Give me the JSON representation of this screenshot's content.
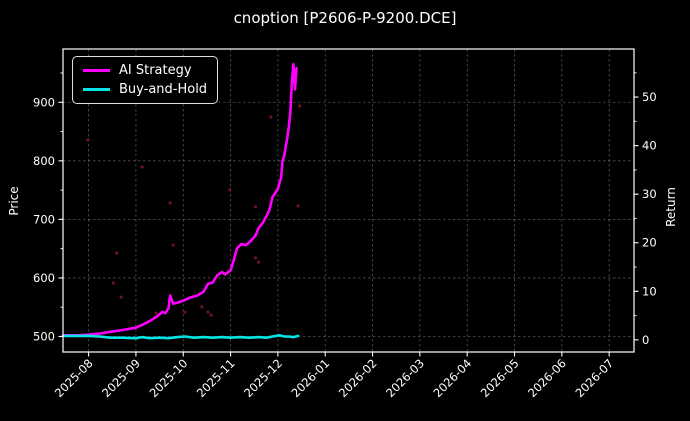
{
  "figure": {
    "title": "cnoption [P2606-P-9200.DCE]",
    "background": "#000000",
    "text_color": "#ffffff",
    "grid_color": "#ffffff",
    "spine_color": "#ffffff"
  },
  "legend": {
    "items": [
      {
        "label": "AI Strategy",
        "color": "#ff00ff"
      },
      {
        "label": "Buy-and-Hold",
        "color": "#00e5e5"
      }
    ]
  },
  "axes": {
    "left": {
      "label": "Price",
      "ticks": [
        500,
        600,
        700,
        800,
        900
      ],
      "minor_ticks": [
        550,
        650,
        750,
        850,
        950
      ],
      "range": [
        473.5,
        991
      ]
    },
    "right": {
      "label": "Return",
      "ticks": [
        0,
        10,
        20,
        30,
        40,
        50
      ],
      "minor_ticks": [
        5,
        15,
        25,
        35,
        45,
        55
      ],
      "range": [
        -2.5,
        59.9
      ]
    },
    "x": {
      "ticks": [
        "2025-08",
        "2025-09",
        "2025-10",
        "2025-11",
        "2025-12",
        "2026-01",
        "2026-02",
        "2026-03",
        "2026-04",
        "2026-05",
        "2026-06",
        "2026-07"
      ],
      "range": [
        "2025-07-15",
        "2026-07-17"
      ]
    }
  },
  "chart_data": {
    "type": "line",
    "title": "cnoption [P2606-P-9200.DCE]",
    "xlabel": "",
    "ylabel_left": "Price",
    "ylabel_right": "Return",
    "grid": true,
    "legend_position": "upper left",
    "x_range": [
      "2025-07-15",
      "2026-07-17"
    ],
    "left_range": [
      473.5,
      991
    ],
    "right_range": [
      -2.5,
      59.9
    ],
    "series": [
      {
        "name": "AI Strategy",
        "color": "#ff00ff",
        "axis": "left",
        "points": [
          [
            "2025-07-15",
            502
          ],
          [
            "2025-07-24",
            502
          ],
          [
            "2025-08-01",
            503
          ],
          [
            "2025-08-08",
            505
          ],
          [
            "2025-08-15",
            508
          ],
          [
            "2025-08-23",
            511
          ],
          [
            "2025-09-01",
            515
          ],
          [
            "2025-09-06",
            521
          ],
          [
            "2025-09-11",
            528
          ],
          [
            "2025-09-15",
            535
          ],
          [
            "2025-09-18",
            542
          ],
          [
            "2025-09-20",
            540
          ],
          [
            "2025-09-22",
            548
          ],
          [
            "2025-09-23",
            570
          ],
          [
            "2025-09-25",
            556
          ],
          [
            "2025-09-28",
            558
          ],
          [
            "2025-10-01",
            561
          ],
          [
            "2025-10-05",
            566
          ],
          [
            "2025-10-10",
            570
          ],
          [
            "2025-10-14",
            576
          ],
          [
            "2025-10-17",
            590
          ],
          [
            "2025-10-20",
            592
          ],
          [
            "2025-10-23",
            605
          ],
          [
            "2025-10-26",
            610
          ],
          [
            "2025-10-28",
            606
          ],
          [
            "2025-11-01",
            613
          ],
          [
            "2025-11-03",
            630
          ],
          [
            "2025-11-05",
            650
          ],
          [
            "2025-11-08",
            658
          ],
          [
            "2025-11-11",
            656
          ],
          [
            "2025-11-14",
            663
          ],
          [
            "2025-11-17",
            672
          ],
          [
            "2025-11-19",
            685
          ],
          [
            "2025-11-22",
            695
          ],
          [
            "2025-11-24",
            705
          ],
          [
            "2025-11-26",
            716
          ],
          [
            "2025-11-28",
            738
          ],
          [
            "2025-12-01",
            752
          ],
          [
            "2025-12-02",
            762
          ],
          [
            "2025-12-03",
            770
          ],
          [
            "2025-12-04",
            800
          ],
          [
            "2025-12-05",
            808
          ],
          [
            "2025-12-07",
            838
          ],
          [
            "2025-12-08",
            858
          ],
          [
            "2025-12-09",
            882
          ],
          [
            "2025-12-10",
            935
          ],
          [
            "2025-12-11",
            965
          ],
          [
            "2025-12-12",
            922
          ],
          [
            "2025-12-13",
            958
          ]
        ]
      },
      {
        "name": "Buy-and-Hold",
        "color": "#00e5e5",
        "axis": "left",
        "points": [
          [
            "2025-07-15",
            501
          ],
          [
            "2025-08-01",
            501
          ],
          [
            "2025-08-08",
            500
          ],
          [
            "2025-08-15",
            498
          ],
          [
            "2025-08-22",
            498
          ],
          [
            "2025-09-01",
            497
          ],
          [
            "2025-09-05",
            499
          ],
          [
            "2025-09-10",
            497
          ],
          [
            "2025-09-16",
            498
          ],
          [
            "2025-09-22",
            497
          ],
          [
            "2025-09-28",
            499
          ],
          [
            "2025-10-02",
            500
          ],
          [
            "2025-10-08",
            498
          ],
          [
            "2025-10-14",
            499
          ],
          [
            "2025-10-20",
            498
          ],
          [
            "2025-10-26",
            499
          ],
          [
            "2025-11-01",
            498
          ],
          [
            "2025-11-07",
            499
          ],
          [
            "2025-11-13",
            498
          ],
          [
            "2025-11-19",
            499
          ],
          [
            "2025-11-24",
            498
          ],
          [
            "2025-11-28",
            500
          ],
          [
            "2025-12-02",
            502
          ],
          [
            "2025-12-05",
            500
          ],
          [
            "2025-12-08",
            500
          ],
          [
            "2025-12-11",
            499
          ],
          [
            "2025-12-14",
            501
          ]
        ]
      }
    ],
    "scatter": {
      "name": "signal-dots",
      "color": "#7a1520",
      "axis": "right",
      "points": [
        [
          "2025-07-31",
          41.2
        ],
        [
          "2025-11-27",
          45.9
        ],
        [
          "2025-10-31",
          30.9
        ],
        [
          "2025-09-25",
          19.5
        ],
        [
          "2025-08-19",
          17.9
        ],
        [
          "2025-11-19",
          16.0
        ],
        [
          "2025-08-17",
          11.7
        ],
        [
          "2025-08-22",
          8.8
        ],
        [
          "2025-10-13",
          6.8
        ],
        [
          "2025-10-19",
          5.1
        ],
        [
          "2025-09-14",
          5.5
        ],
        [
          "2025-10-02",
          5.7
        ],
        [
          "2025-10-17",
          5.7
        ],
        [
          "2025-11-17",
          16.9
        ],
        [
          "2025-12-15",
          48.2
        ],
        [
          "2025-09-05",
          35.6
        ],
        [
          "2025-09-23",
          28.2
        ],
        [
          "2025-11-17",
          27.4
        ],
        [
          "2025-12-14",
          27.6
        ]
      ]
    }
  }
}
